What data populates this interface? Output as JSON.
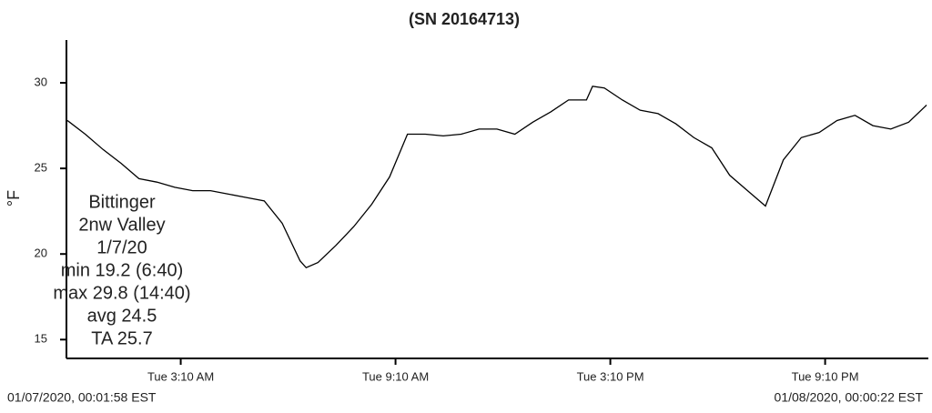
{
  "chart_data": {
    "type": "line",
    "title": "(SN 20164713)",
    "y_label": "°F",
    "x": [
      0,
      0.5,
      1,
      1.5,
      2,
      2.5,
      3,
      3.5,
      4,
      4.5,
      5,
      5.5,
      6,
      6.5,
      6.67,
      7,
      7.5,
      8,
      8.5,
      9,
      9.5,
      10,
      10.5,
      11,
      11.5,
      12,
      12.5,
      13,
      13.5,
      14,
      14.5,
      14.67,
      15,
      15.5,
      16,
      16.5,
      17,
      17.5,
      18,
      18.5,
      19,
      19.5,
      20,
      20.5,
      21,
      21.5,
      22,
      22.5,
      23,
      23.5,
      24
    ],
    "series": [
      {
        "color": "#000000",
        "values": [
          27.8,
          27.0,
          26.1,
          25.3,
          24.4,
          24.2,
          23.9,
          23.7,
          23.7,
          23.5,
          23.3,
          23.1,
          21.8,
          19.6,
          19.2,
          19.5,
          20.5,
          21.6,
          22.9,
          24.5,
          27.0,
          27.0,
          26.9,
          27.0,
          27.3,
          27.3,
          27.0,
          27.7,
          28.3,
          29.0,
          29.0,
          29.8,
          29.7,
          29.0,
          28.4,
          28.2,
          27.6,
          26.8,
          26.2,
          24.6,
          23.7,
          22.8,
          25.5,
          26.8,
          27.1,
          27.8,
          28.1,
          27.5,
          27.3,
          27.7,
          28.7
        ]
      }
    ],
    "xlim": [
      0,
      24.05
    ],
    "xticks": [
      {
        "value": 3.1667,
        "label": "Tue 3:10 AM"
      },
      {
        "value": 9.1667,
        "label": "Tue 9:10 AM"
      },
      {
        "value": 15.1667,
        "label": "Tue 3:10 PM"
      },
      {
        "value": 21.1667,
        "label": "Tue 9:10 PM"
      }
    ],
    "ylim": [
      13.9,
      32.5
    ],
    "yticks": [
      15,
      20,
      25,
      30
    ],
    "annotations": [
      "Bittinger",
      "2nw Valley",
      "1/7/20",
      "min 19.2 (6:40)",
      "max 29.8 (14:40)",
      "avg 24.5",
      "TA 25.7"
    ],
    "start_label": "01/07/2020, 00:01:58 EST",
    "end_label": "01/08/2020, 00:00:22 EST"
  }
}
